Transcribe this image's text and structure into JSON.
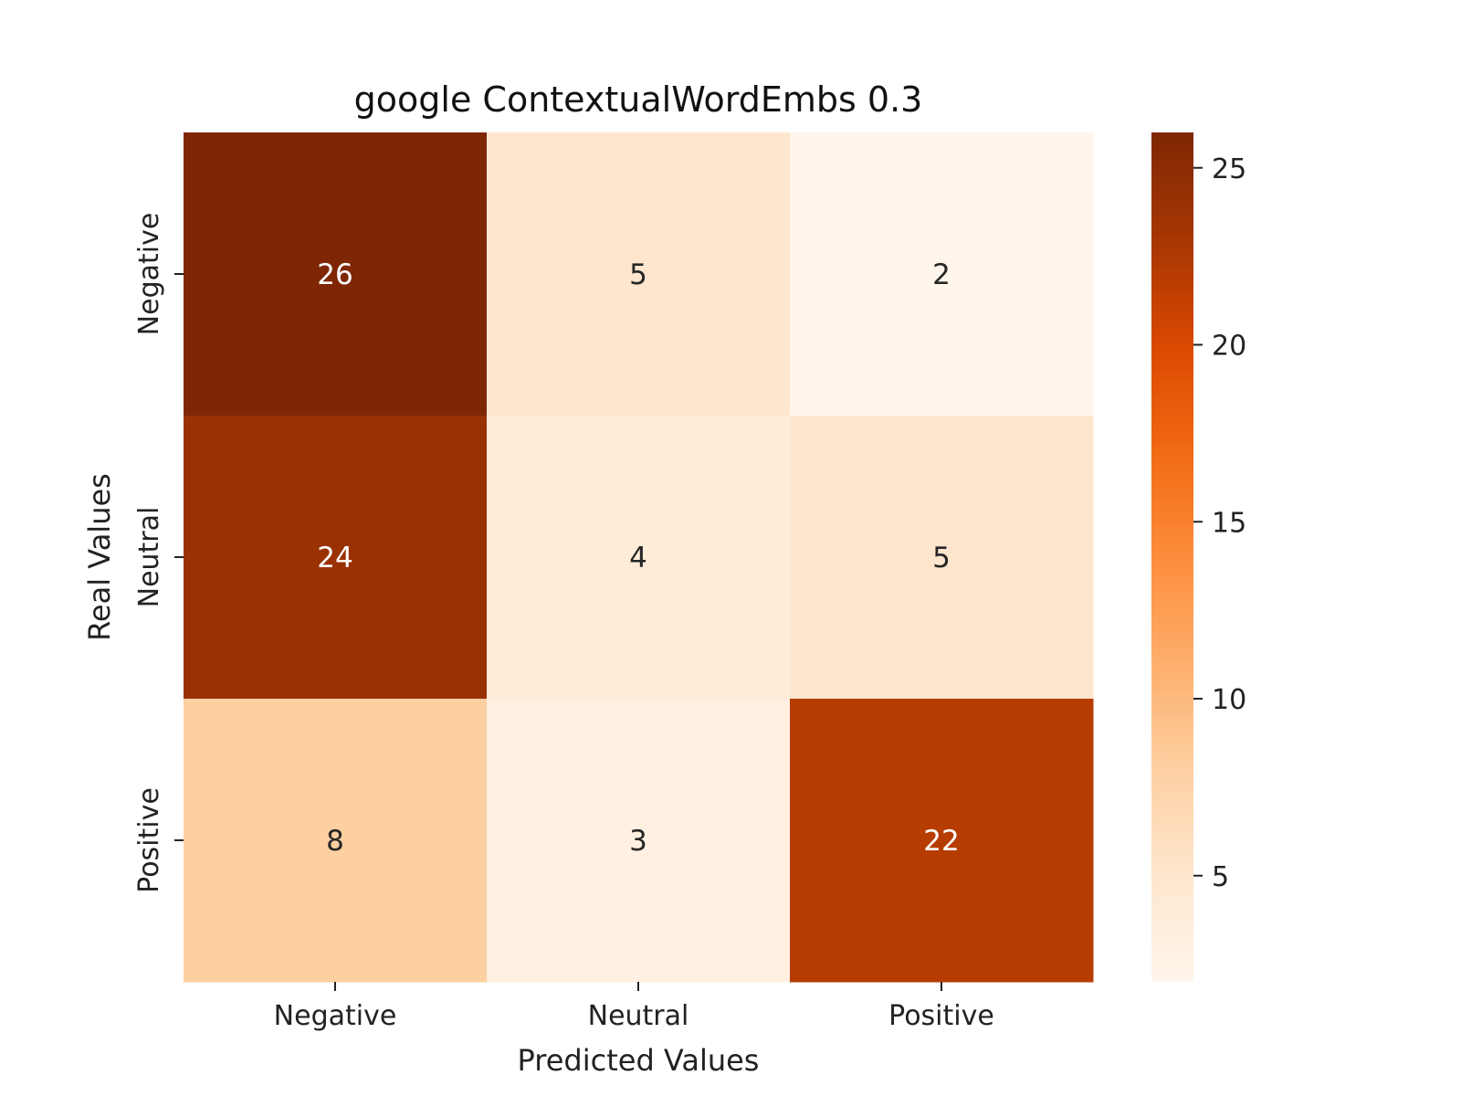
{
  "chart_data": {
    "type": "heatmap",
    "title": "google ContextualWordEmbs 0.3",
    "xlabel": "Predicted Values",
    "ylabel": "Real Values",
    "x_categories": [
      "Negative",
      "Neutral",
      "Positive"
    ],
    "y_categories": [
      "Negative",
      "Neutral",
      "Positive"
    ],
    "values": [
      [
        26,
        5,
        2
      ],
      [
        24,
        4,
        5
      ],
      [
        8,
        3,
        22
      ]
    ],
    "colormap": "Oranges",
    "colorbar": {
      "min": 2,
      "max": 26,
      "ticks": [
        5,
        10,
        15,
        20,
        25
      ]
    },
    "grid": false
  }
}
